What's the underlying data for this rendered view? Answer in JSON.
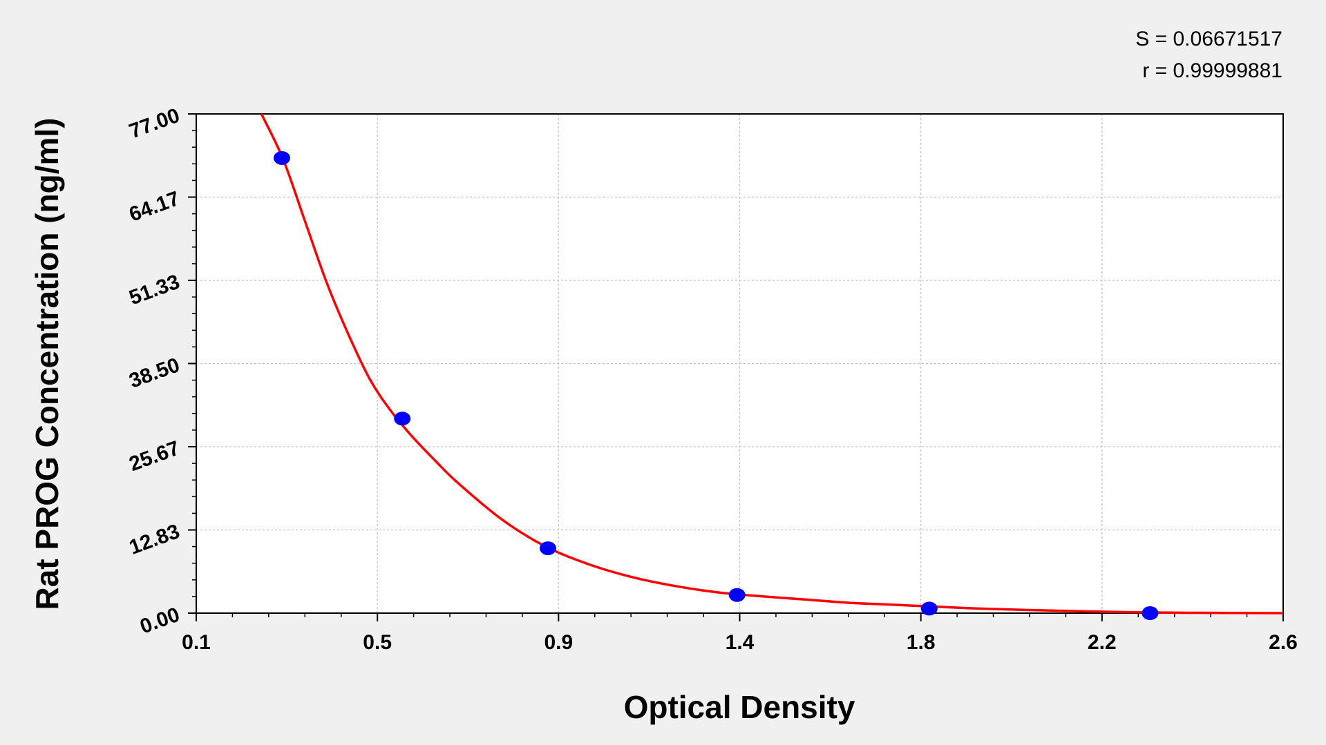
{
  "chart_data": {
    "type": "scatter",
    "title": "",
    "xlabel": "Optical Density",
    "ylabel": "Rat  PROG Concentration (ng/ml)",
    "xlim": [
      0.1,
      2.6
    ],
    "ylim": [
      0,
      77
    ],
    "x_ticks": [
      "0.1",
      "0.5",
      "0.9",
      "1.4",
      "1.8",
      "2.2",
      "2.6"
    ],
    "x_tick_values": [
      0.1,
      0.5,
      0.9,
      1.4,
      1.8,
      2.2,
      2.6
    ],
    "y_ticks": [
      "0.00",
      "12.83",
      "25.67",
      "38.50",
      "51.33",
      "64.17",
      "77.00"
    ],
    "y_tick_values": [
      0,
      12.83,
      25.67,
      38.5,
      51.33,
      64.17,
      77
    ],
    "grid": true,
    "annotations": [
      "S = 0.06671517",
      "r = 0.99999881"
    ],
    "series": [
      {
        "kind": "points",
        "color": "#0000ff",
        "x": [
          0.297,
          0.574,
          0.909,
          1.344,
          1.786,
          2.294
        ],
        "y": [
          70.2,
          30.0,
          10.0,
          2.8,
          0.7,
          0.0
        ]
      },
      {
        "kind": "fit-curve",
        "color": "#ff0000",
        "x": [
          0.25,
          0.3,
          0.35,
          0.4,
          0.45,
          0.5,
          0.55,
          0.6,
          0.65,
          0.7,
          0.8,
          0.9,
          1.0,
          1.1,
          1.2,
          1.3,
          1.4,
          1.5,
          1.6,
          1.7,
          1.8,
          1.9,
          2.0,
          2.1,
          2.2,
          2.3,
          2.4,
          2.5,
          2.6
        ],
        "y": [
          77.0,
          70.0,
          60.5,
          51.0,
          43.0,
          36.0,
          31.0,
          27.0,
          23.5,
          20.2,
          14.6,
          10.4,
          7.6,
          5.6,
          4.2,
          3.2,
          2.6,
          2.1,
          1.6,
          1.3,
          1.0,
          0.7,
          0.5,
          0.35,
          0.2,
          0.1,
          0.05,
          0.02,
          0.0
        ]
      }
    ]
  }
}
